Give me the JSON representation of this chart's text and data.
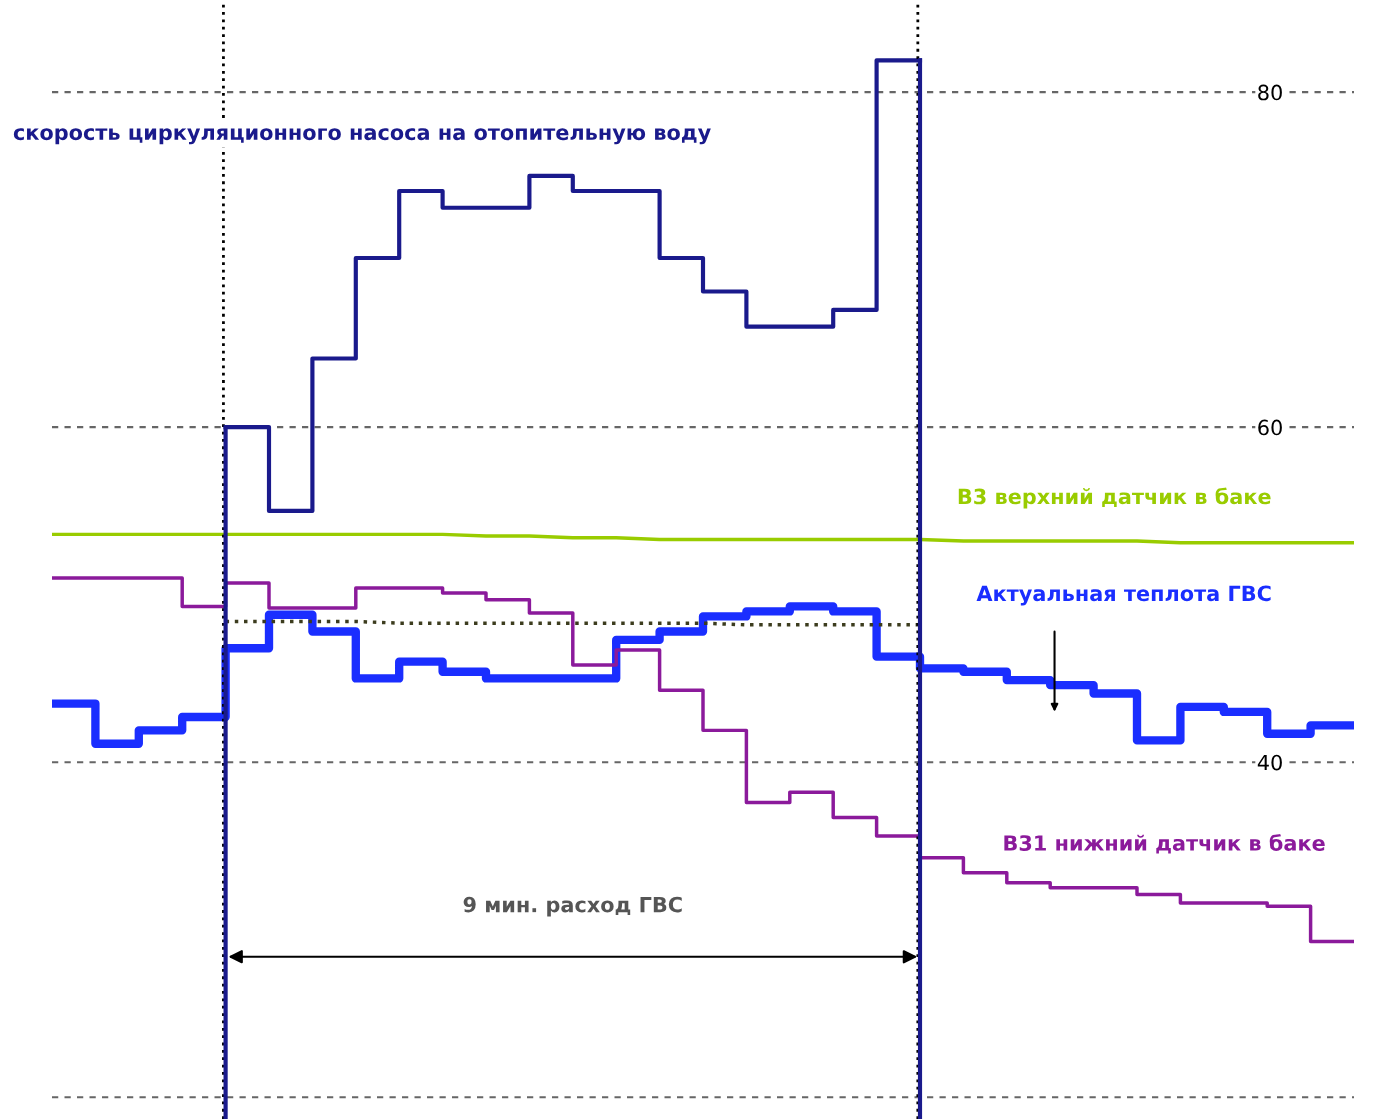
{
  "chart_data": {
    "type": "step",
    "categories": [
      null,
      null,
      null,
      null,
      null,
      null,
      null,
      null,
      null,
      null,
      null,
      null,
      null,
      null,
      null,
      null,
      null,
      null,
      null,
      null,
      null,
      null,
      null,
      null,
      null,
      null,
      null,
      null,
      null,
      null,
      null
    ],
    "ylim": [
      18.7,
      85.5
    ],
    "yticks": [
      {
        "value": 20,
        "label": null
      },
      40,
      60,
      80
    ],
    "tick_labels": "y",
    "grid": "y",
    "legend": false,
    "series": [
      {
        "name": "скорость циркуляционного насоса на отопительную воду",
        "color": "#1a1a8c",
        "values": [
          null,
          null,
          null,
          null,
          60.0,
          55.0,
          64.1,
          70.1,
          74.1,
          73.1,
          73.1,
          75.0,
          74.1,
          74.1,
          70.1,
          68.1,
          66.0,
          66.0,
          67.0,
          81.9,
          81.9,
          null,
          null,
          null,
          null,
          null,
          null,
          null,
          null,
          null,
          null
        ]
      },
      {
        "name": "B3 верхний датчик в баке",
        "type": "line",
        "color": "#99cc00",
        "values": [
          53.6,
          53.6,
          53.6,
          53.6,
          53.6,
          53.6,
          53.6,
          53.6,
          53.6,
          53.6,
          53.5,
          53.5,
          53.4,
          53.4,
          53.3,
          53.3,
          53.3,
          53.3,
          53.3,
          53.3,
          53.3,
          53.2,
          53.2,
          53.2,
          53.2,
          53.2,
          53.1,
          53.1,
          53.1,
          53.1,
          53.1
        ]
      },
      {
        "name": "Актуальная теплота ГВС",
        "color": "#1a2eff",
        "values": [
          43.5,
          41.1,
          41.9,
          42.7,
          46.8,
          48.8,
          47.8,
          45.0,
          46.0,
          45.4,
          45.0,
          45.0,
          45.0,
          47.3,
          47.8,
          48.7,
          49.0,
          49.3,
          49.0,
          46.3,
          45.6,
          45.4,
          44.9,
          44.6,
          44.1,
          41.3,
          43.3,
          43.0,
          41.7,
          42.2,
          42.2
        ]
      },
      {
        "name": "B31 нижний датчик в баке",
        "color": "#8b1a9b",
        "values": [
          51.0,
          51.0,
          51.0,
          49.3,
          50.7,
          49.2,
          49.2,
          50.4,
          50.4,
          50.1,
          49.7,
          48.9,
          45.8,
          46.7,
          44.3,
          41.9,
          37.6,
          38.2,
          36.7,
          35.6,
          34.3,
          33.4,
          32.8,
          32.5,
          32.5,
          32.1,
          31.6,
          31.6,
          31.4,
          29.3,
          29.3
        ]
      },
      {
        "type": "line",
        "line_style": "dotted",
        "color": "#3c3c1e",
        "values": [
          null,
          null,
          null,
          null,
          48.4,
          48.4,
          48.4,
          48.4,
          48.3,
          48.3,
          48.3,
          48.3,
          48.3,
          48.3,
          48.3,
          48.3,
          48.2,
          48.2,
          48.2,
          48.2,
          48.2,
          null,
          null,
          null,
          null,
          null,
          null,
          null,
          null,
          null,
          null
        ]
      }
    ],
    "annotations": [
      "9 мин. расход ГВС"
    ]
  }
}
